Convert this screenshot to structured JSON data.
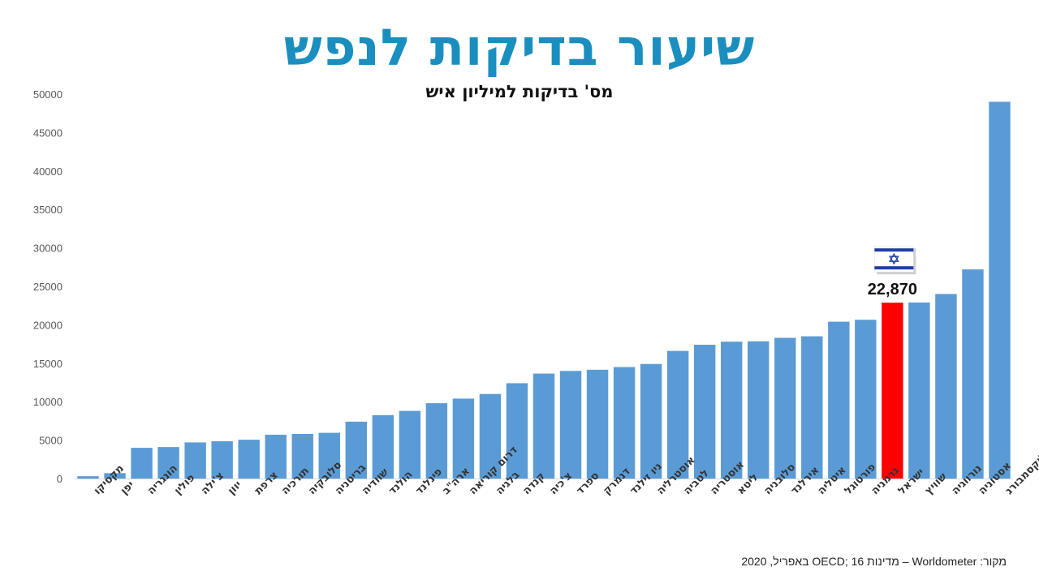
{
  "header": {
    "title": "שיעור בדיקות לנפש",
    "subtitle": "מס' בדיקות למיליון איש"
  },
  "source_note": "מקור: Worldometer – מדינות OECD; 16 באפריל, 2020",
  "colors": {
    "bar": "#5b9bd5",
    "highlight": "#ff0000",
    "title": "#1a8fbf"
  },
  "highlight_icon": "israel-flag-icon",
  "chart_data": {
    "type": "bar",
    "title": "שיעור בדיקות לנפש",
    "subtitle": "מס' בדיקות למיליון איש",
    "xlabel": "",
    "ylabel": "",
    "ylim": [
      0,
      50000
    ],
    "yticks": [
      0,
      5000,
      10000,
      15000,
      20000,
      25000,
      30000,
      35000,
      40000,
      45000,
      50000
    ],
    "grid": false,
    "categories": [
      "מקסיקו",
      "יפן",
      "הונגריה",
      "פולין",
      "צ'ילה",
      "יוון",
      "צרפת",
      "תורכיה",
      "סלובקיה",
      "בריטניה",
      "שוודיה",
      "הולנד",
      "פינלנד",
      "ארה\"ב",
      "דרום קוריאה",
      "בלגיה",
      "קנדה",
      "צ'כיה",
      "ספרד",
      "דנמרק",
      "ניו זילנד",
      "אוסטרליה",
      "לטביה",
      "אוסטריה",
      "ליטא",
      "סלובניה",
      "אירלנד",
      "איטליה",
      "פורטוגל",
      "גרמניה",
      "ישראל",
      "שוויץ",
      "נורווגיה",
      "אסטוניה",
      "לוקסמבורג"
    ],
    "values": [
      300,
      700,
      4000,
      4100,
      4700,
      4850,
      5050,
      5700,
      5800,
      5950,
      7400,
      8250,
      8800,
      9800,
      10400,
      11000,
      12400,
      13650,
      14000,
      14150,
      14500,
      14900,
      16600,
      17400,
      17800,
      17850,
      18300,
      18500,
      20400,
      20650,
      22870,
      22900,
      24000,
      27200,
      49000
    ],
    "highlight_category": "ישראל",
    "highlight_label": "22,870"
  }
}
